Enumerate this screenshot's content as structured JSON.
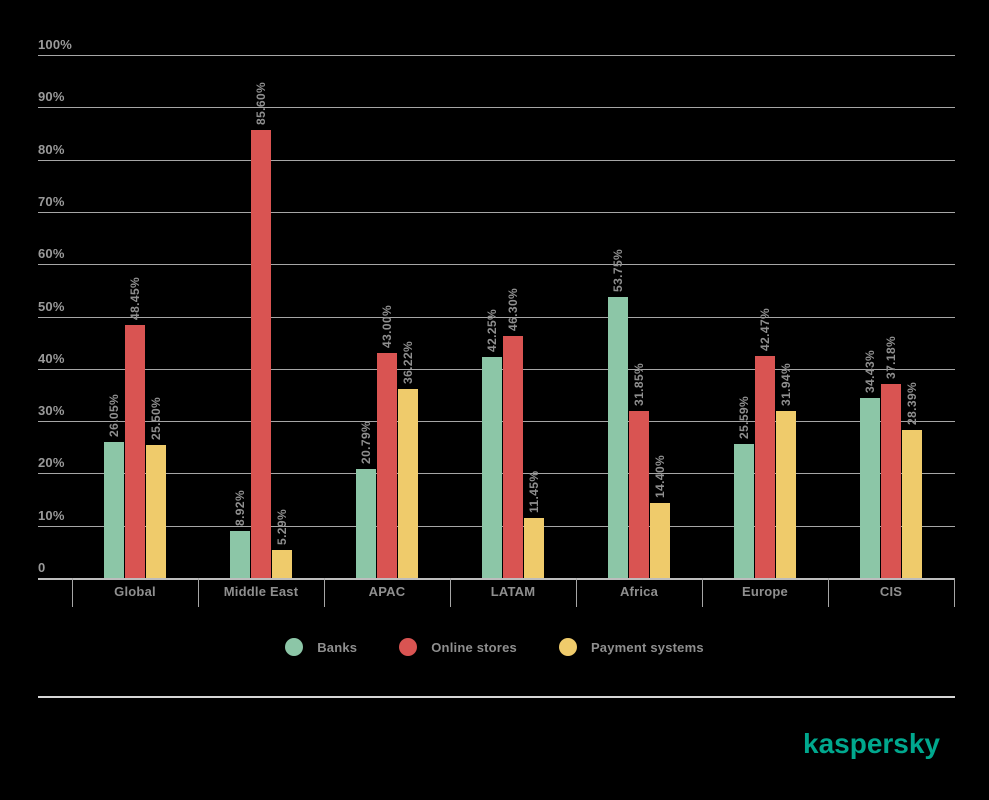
{
  "chart_data": {
    "type": "bar",
    "title": "",
    "categories": [
      "Global",
      "Middle East",
      "APAC",
      "LATAM",
      "Africa",
      "Europe",
      "CIS"
    ],
    "series": [
      {
        "name": "Banks",
        "color": "#8CC6A7",
        "values": [
          26.05,
          8.92,
          20.79,
          42.25,
          53.75,
          25.59,
          34.43
        ]
      },
      {
        "name": "Online stores",
        "color": "#D95452",
        "values": [
          48.45,
          85.6,
          43.0,
          46.3,
          31.85,
          42.47,
          37.18
        ]
      },
      {
        "name": "Payment systems",
        "color": "#EFCB6B",
        "values": [
          25.5,
          5.29,
          36.22,
          11.45,
          14.4,
          31.94,
          28.39
        ]
      }
    ],
    "value_label_suffix": "%",
    "value_label_decimals": 2,
    "ylim": [
      0,
      100
    ],
    "yticks": [
      {
        "value": 100,
        "label": "100%"
      },
      {
        "value": 90,
        "label": "90%"
      },
      {
        "value": 80,
        "label": "80%"
      },
      {
        "value": 70,
        "label": "70%"
      },
      {
        "value": 60,
        "label": "60%"
      },
      {
        "value": 50,
        "label": "50%"
      },
      {
        "value": 40,
        "label": "40%"
      },
      {
        "value": 30,
        "label": "30%"
      },
      {
        "value": 20,
        "label": "20%"
      },
      {
        "value": 10,
        "label": "10%"
      },
      {
        "value": 0,
        "label": "0"
      }
    ],
    "grid": true,
    "legend_position": "bottom-center",
    "xlabel": "",
    "ylabel": ""
  },
  "colors": {
    "background": "#000000",
    "grid": "#A6A6A6",
    "axis_text": "#9A9A9A",
    "value_text": "#8F8F8F",
    "separator": "#D6D6D6"
  },
  "branding": {
    "logo_text": "kaspersky",
    "logo_color": "#00A88E"
  }
}
